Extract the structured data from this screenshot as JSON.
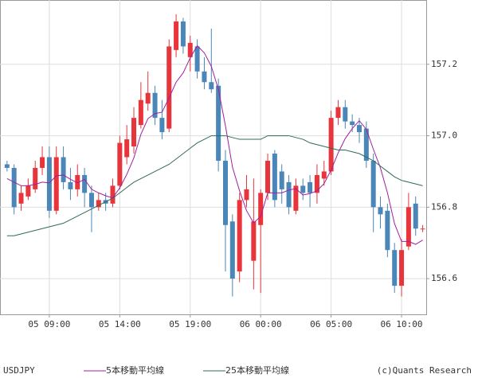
{
  "chart_data": {
    "type": "candlestick",
    "symbol": "USDJPY",
    "credit": "(c)Quants Research",
    "up_color": "#e8343b",
    "down_color": "#4a86b8",
    "x": [
      6.0,
      6.5,
      7.0,
      7.5,
      8.0,
      8.5,
      9.0,
      9.5,
      10.0,
      10.5,
      11.0,
      11.5,
      12.0,
      12.5,
      13.0,
      13.5,
      14.0,
      14.5,
      15.0,
      15.5,
      16.0,
      16.5,
      17.0,
      17.5,
      18.0,
      18.5,
      19.0,
      19.5,
      20.0,
      20.5,
      21.0,
      21.5,
      22.0,
      22.5,
      23.0,
      23.5,
      24.0,
      24.5,
      25.0,
      25.5,
      26.0,
      26.5,
      27.0,
      27.5,
      28.0,
      28.5,
      29.0,
      29.5,
      30.0,
      30.5,
      31.0,
      31.5,
      32.0,
      32.5,
      33.0,
      33.5,
      34.0,
      34.5,
      35.0,
      35.5
    ],
    "open": [
      156.92,
      156.91,
      156.81,
      156.83,
      156.85,
      156.91,
      156.94,
      156.79,
      156.94,
      156.87,
      156.85,
      156.89,
      156.84,
      156.8,
      156.82,
      156.81,
      156.86,
      156.94,
      156.97,
      157.03,
      157.09,
      157.12,
      157.05,
      157.02,
      157.24,
      157.32,
      157.22,
      157.25,
      157.18,
      157.15,
      157.14,
      156.93,
      156.76,
      156.62,
      156.82,
      156.65,
      156.75,
      156.84,
      156.95,
      156.9,
      156.87,
      156.79,
      156.86,
      156.87,
      156.84,
      156.88,
      156.9,
      157.05,
      157.08,
      157.04,
      157.03,
      157.02,
      156.93,
      156.8,
      156.79,
      156.68,
      156.58,
      156.69,
      156.81,
      156.74
    ],
    "high": [
      156.93,
      156.92,
      156.86,
      156.88,
      156.93,
      156.97,
      156.97,
      156.97,
      156.97,
      156.91,
      156.92,
      156.91,
      156.86,
      156.84,
      156.84,
      156.88,
      157.0,
      157.03,
      157.08,
      157.15,
      157.18,
      157.14,
      157.1,
      157.27,
      157.34,
      157.33,
      157.28,
      157.27,
      157.22,
      157.3,
      157.16,
      156.96,
      156.78,
      156.84,
      156.89,
      156.88,
      156.85,
      156.95,
      156.96,
      156.92,
      156.89,
      156.88,
      156.88,
      156.89,
      156.92,
      156.93,
      157.07,
      157.1,
      157.1,
      157.06,
      157.05,
      157.04,
      156.95,
      156.83,
      156.81,
      156.7,
      156.71,
      156.84,
      156.83,
      156.75
    ],
    "low": [
      156.9,
      156.78,
      156.79,
      156.82,
      156.84,
      156.89,
      156.77,
      156.78,
      156.85,
      156.82,
      156.83,
      156.8,
      156.73,
      156.79,
      156.79,
      156.8,
      156.85,
      156.92,
      156.95,
      157.02,
      157.07,
      157.03,
      156.99,
      157.01,
      157.22,
      157.23,
      157.18,
      157.16,
      157.13,
      157.12,
      156.9,
      156.62,
      156.55,
      156.59,
      156.8,
      156.57,
      156.56,
      156.82,
      156.8,
      156.81,
      156.78,
      156.78,
      156.82,
      156.8,
      156.81,
      156.86,
      156.89,
      157.03,
      157.02,
      157.01,
      156.98,
      156.91,
      156.73,
      156.74,
      156.66,
      156.56,
      156.55,
      156.68,
      156.72,
      156.73
    ],
    "close": [
      156.91,
      156.8,
      156.84,
      156.86,
      156.91,
      156.94,
      156.79,
      156.94,
      156.87,
      156.85,
      156.89,
      156.84,
      156.8,
      156.82,
      156.81,
      156.86,
      156.98,
      156.99,
      157.05,
      157.1,
      157.12,
      157.05,
      157.01,
      157.25,
      157.32,
      157.25,
      157.26,
      157.18,
      157.15,
      157.13,
      156.93,
      156.75,
      156.6,
      156.82,
      156.85,
      156.76,
      156.84,
      156.93,
      156.82,
      156.85,
      156.8,
      156.86,
      156.84,
      156.84,
      156.89,
      156.9,
      157.05,
      157.08,
      157.04,
      157.03,
      157.01,
      156.93,
      156.8,
      156.78,
      156.68,
      156.58,
      156.68,
      156.8,
      156.74,
      156.74
    ],
    "series": [
      {
        "name": "5本移動平均線",
        "color": "#a020a0",
        "values": [
          156.88,
          156.87,
          156.86,
          156.86,
          156.864,
          156.87,
          156.868,
          156.888,
          156.89,
          156.878,
          156.868,
          156.878,
          156.85,
          156.84,
          156.832,
          156.826,
          156.854,
          156.892,
          156.938,
          157.004,
          157.048,
          157.062,
          157.066,
          157.106,
          157.15,
          157.176,
          157.218,
          157.252,
          157.232,
          157.194,
          157.13,
          157.028,
          156.912,
          156.846,
          156.79,
          156.756,
          156.774,
          156.84,
          156.84,
          156.84,
          156.848,
          156.852,
          156.834,
          156.838,
          156.846,
          156.866,
          156.904,
          156.952,
          156.992,
          157.02,
          157.042,
          157.018,
          156.962,
          156.91,
          156.84,
          156.754,
          156.704,
          156.704,
          156.696,
          156.708
        ]
      },
      {
        "name": "25本移動平均線",
        "color": "#2f6b5a",
        "values": [
          156.72,
          156.72,
          156.725,
          156.73,
          156.735,
          156.74,
          156.745,
          156.75,
          156.755,
          156.765,
          156.775,
          156.785,
          156.795,
          156.805,
          156.815,
          156.825,
          156.84,
          156.855,
          156.87,
          156.88,
          156.89,
          156.9,
          156.91,
          156.92,
          156.935,
          156.95,
          156.965,
          156.98,
          156.99,
          157.0,
          157.0,
          157.0,
          156.995,
          156.99,
          156.99,
          156.99,
          156.99,
          157.0,
          157.0,
          157.0,
          157.0,
          156.995,
          156.99,
          156.98,
          156.975,
          156.97,
          156.965,
          156.96,
          156.96,
          156.955,
          156.95,
          156.94,
          156.93,
          156.915,
          156.9,
          156.885,
          156.875,
          156.87,
          156.865,
          156.86
        ]
      }
    ],
    "xlim": [
      5.5,
      35.75
    ],
    "xticks": [
      {
        "value": 9,
        "label": "05 09:00"
      },
      {
        "value": 14,
        "label": "05 14:00"
      },
      {
        "value": 19,
        "label": "05 19:00"
      },
      {
        "value": 24,
        "label": "06 00:00"
      },
      {
        "value": 29,
        "label": "06 05:00"
      },
      {
        "value": 34,
        "label": "06 10:00"
      }
    ],
    "ylim": [
      156.5,
      157.38
    ],
    "yticks": [
      156.6,
      156.8,
      {
        "value": 157,
        "label": "157.0"
      },
      157.2
    ],
    "grid": true
  }
}
